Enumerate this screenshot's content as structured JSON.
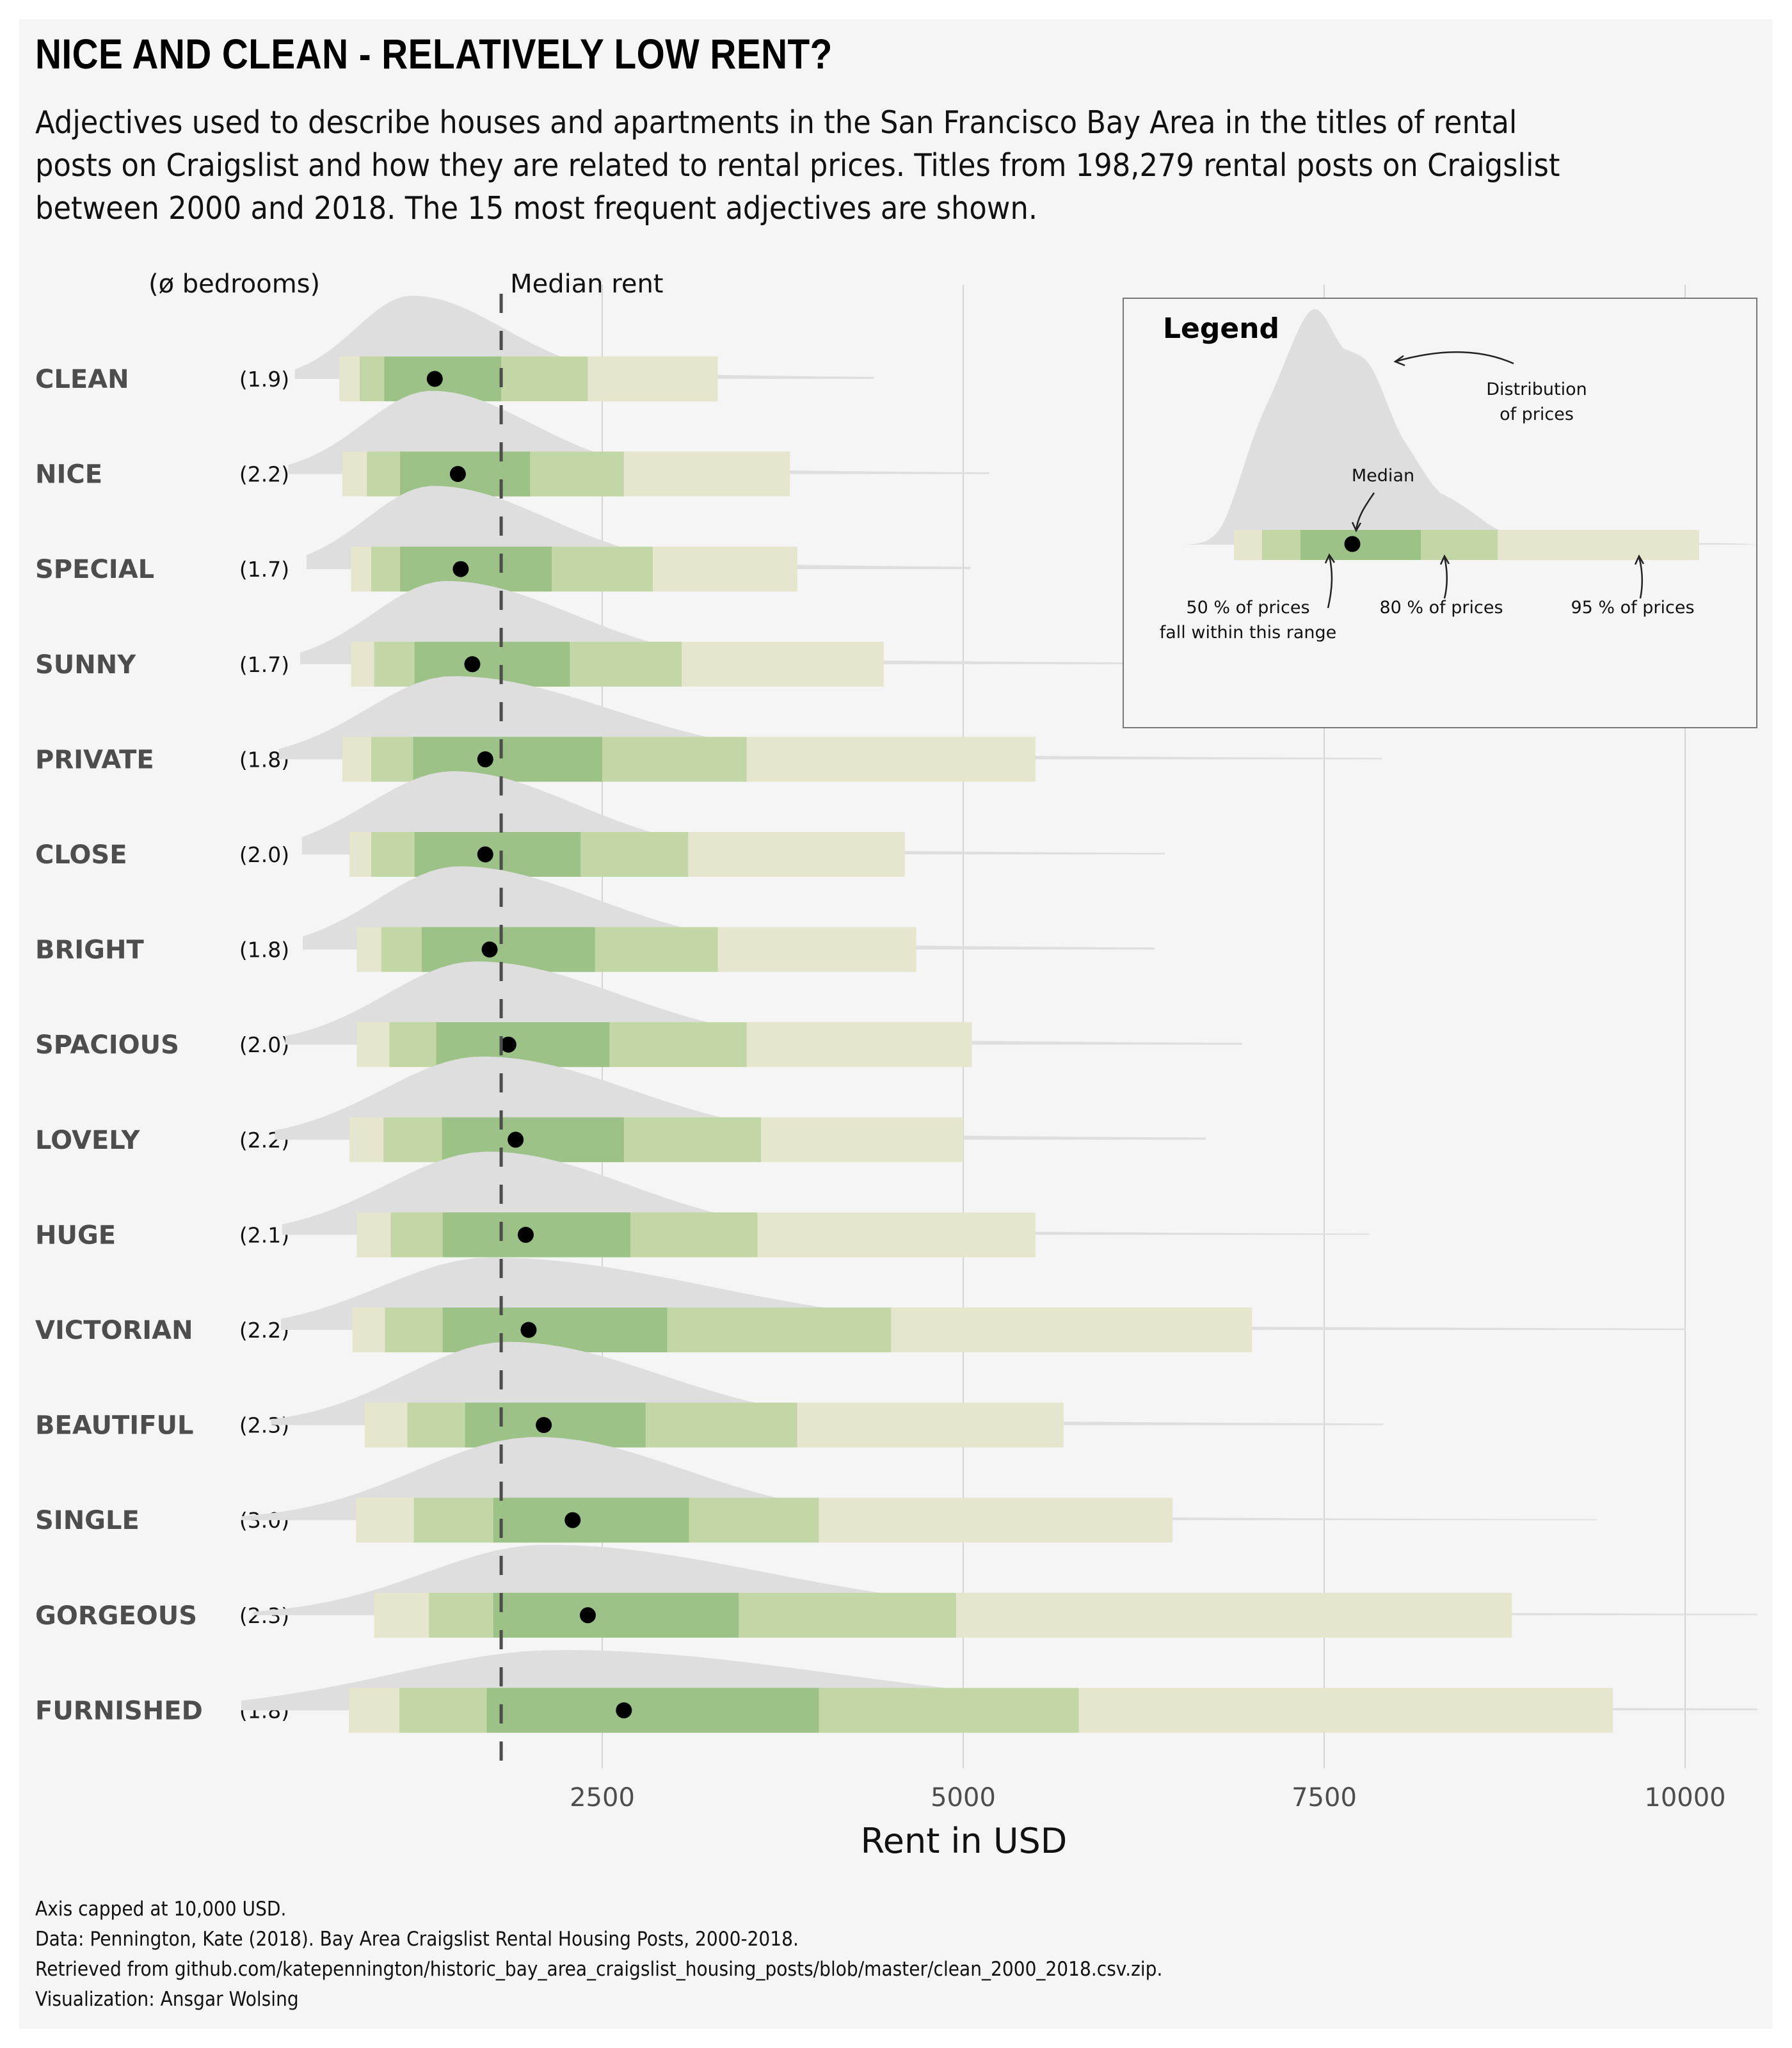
{
  "title": "NICE AND CLEAN - RELATIVELY LOW RENT?",
  "subtitle_lines": [
    "Adjectives used to describe houses and apartments in the San Francisco Bay Area in the titles of rental",
    "posts on Craigslist and how they are related to rental prices. Titles from 198,279 rental posts on Craigslist",
    "between 2000 and 2018. The 15 most frequent adjectives are shown."
  ],
  "caption_lines": [
    "Axis capped at 10,000 USD.",
    "Data: Pennington, Kate (2018). Bay Area Craigslist Rental Housing Posts, 2000-2018.",
    "Retrieved from github.com/katepennington/historic_bay_area_craigslist_housing_posts/blob/master/clean_2000_2018.csv.zip.",
    "Visualization: Ansgar Wolsing"
  ],
  "colors": {
    "panel_bg": "#f5f5f5",
    "density": "#dedede",
    "band95": "#e6e5cd",
    "band80": "#c3d7a6",
    "band50": "#9dc287",
    "median_dot": "#000000",
    "median_line": "#4d4d4d",
    "grid": "#d4d4d4",
    "label_gray": "#4d4d4d"
  },
  "legend": {
    "title": "Legend",
    "distribution_label": [
      "Distribution",
      "of prices"
    ],
    "median_label": "Median",
    "band50_label": [
      "50 % of prices",
      "fall within this range"
    ],
    "band80_label": "80 % of prices",
    "band95_label": "95 % of prices"
  },
  "chart_data": {
    "type": "interval-density",
    "title": "NICE AND CLEAN - RELATIVELY LOW RENT?",
    "xlabel": "Rent in USD",
    "ylabel": "",
    "xlim": [
      0,
      10500
    ],
    "x_ticks": [
      2500,
      5000,
      7500,
      10000
    ],
    "x_tick_labels": [
      "2500",
      "5000",
      "7500",
      "10000"
    ],
    "grid": "vertical major gridlines on",
    "bedrooms_header": "(ø bedrooms)",
    "reference_line": {
      "label": "Median rent",
      "value": 1800
    },
    "legend_placement": "top-right",
    "rows": [
      {
        "adjective": "CLEAN",
        "bedrooms": "(1.9)",
        "median": 1340,
        "q50": [
          990,
          1800
        ],
        "q80": [
          820,
          2400
        ],
        "q95": [
          680,
          3300
        ]
      },
      {
        "adjective": "NICE",
        "bedrooms": "(2.2)",
        "median": 1500,
        "q50": [
          1100,
          2000
        ],
        "q80": [
          870,
          2650
        ],
        "q95": [
          700,
          3800
        ]
      },
      {
        "adjective": "SPECIAL",
        "bedrooms": "(1.7)",
        "median": 1520,
        "q50": [
          1100,
          2150
        ],
        "q80": [
          900,
          2850
        ],
        "q95": [
          760,
          3850
        ]
      },
      {
        "adjective": "SUNNY",
        "bedrooms": "(1.7)",
        "median": 1600,
        "q50": [
          1200,
          2275
        ],
        "q80": [
          920,
          3050
        ],
        "q95": [
          760,
          4450
        ]
      },
      {
        "adjective": "PRIVATE",
        "bedrooms": "(1.8)",
        "median": 1690,
        "q50": [
          1190,
          2500
        ],
        "q80": [
          900,
          3500
        ],
        "q95": [
          700,
          5500
        ]
      },
      {
        "adjective": "CLOSE",
        "bedrooms": "(2.0)",
        "median": 1690,
        "q50": [
          1200,
          2350
        ],
        "q80": [
          900,
          3095
        ],
        "q95": [
          750,
          4595
        ]
      },
      {
        "adjective": "BRIGHT",
        "bedrooms": "(1.8)",
        "median": 1720,
        "q50": [
          1250,
          2450
        ],
        "q80": [
          970,
          3300
        ],
        "q95": [
          800,
          4675
        ]
      },
      {
        "adjective": "SPACIOUS",
        "bedrooms": "(2.0)",
        "median": 1850,
        "q50": [
          1350,
          2550
        ],
        "q80": [
          1025,
          3500
        ],
        "q95": [
          800,
          5060
        ]
      },
      {
        "adjective": "LOVELY",
        "bedrooms": "(2.2)",
        "median": 1900,
        "q50": [
          1390,
          2650
        ],
        "q80": [
          985,
          3600
        ],
        "q95": [
          750,
          5000
        ]
      },
      {
        "adjective": "HUGE",
        "bedrooms": "(2.1)",
        "median": 1970,
        "q50": [
          1395,
          2695
        ],
        "q80": [
          1035,
          3575
        ],
        "q95": [
          800,
          5500
        ]
      },
      {
        "adjective": "VICTORIAN",
        "bedrooms": "(2.2)",
        "median": 1990,
        "q50": [
          1395,
          2950
        ],
        "q80": [
          995,
          4500
        ],
        "q95": [
          770,
          7000
        ]
      },
      {
        "adjective": "BEAUTIFUL",
        "bedrooms": "(2.3)",
        "median": 2095,
        "q50": [
          1550,
          2800
        ],
        "q80": [
          1150,
          3850
        ],
        "q95": [
          855,
          5695
        ]
      },
      {
        "adjective": "SINGLE",
        "bedrooms": "(3.0)",
        "median": 2295,
        "q50": [
          1745,
          3100
        ],
        "q80": [
          1195,
          4000
        ],
        "q95": [
          795,
          6450
        ]
      },
      {
        "adjective": "GORGEOUS",
        "bedrooms": "(2.3)",
        "median": 2400,
        "q50": [
          1745,
          3445
        ],
        "q80": [
          1300,
          4950
        ],
        "q95": [
          920,
          8800
        ]
      },
      {
        "adjective": "FURNISHED",
        "bedrooms": "(1.8)",
        "median": 2650,
        "q50": [
          1700,
          4000
        ],
        "q80": [
          1095,
          5800
        ],
        "q95": [
          745,
          9500
        ]
      }
    ]
  }
}
